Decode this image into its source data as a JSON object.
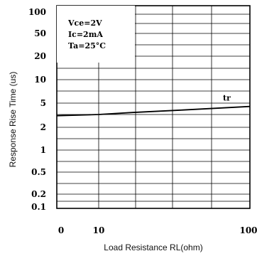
{
  "chart_data": {
    "type": "line",
    "title": "",
    "xlabel": "Load Resistance RL(ohm)",
    "ylabel": "Response Rise Time (us)",
    "xlim": [
      0,
      100
    ],
    "x_ticks": [
      "0",
      "10",
      "100"
    ],
    "y_ticks": [
      "100",
      "50",
      "20",
      "10",
      "5",
      "2",
      "1",
      "0.5",
      "0.2",
      "0.1"
    ],
    "conditions": [
      "Vce=2V",
      "Ic=2mA",
      "Ta=25°C"
    ],
    "grid": true,
    "series": [
      {
        "name": "tr",
        "points": [
          [
            0,
            3.1
          ],
          [
            10,
            3.25
          ],
          [
            30,
            3.5
          ],
          [
            60,
            3.85
          ],
          [
            100,
            4.4
          ]
        ]
      }
    ]
  }
}
